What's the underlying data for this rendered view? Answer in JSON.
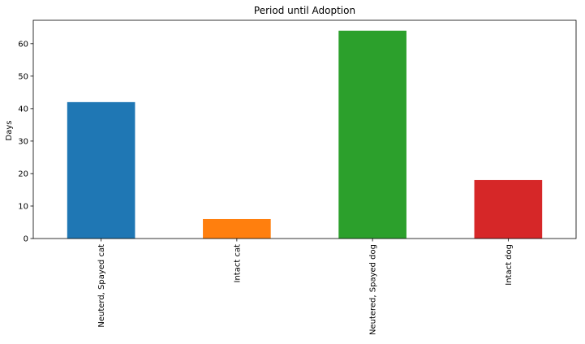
{
  "chart_data": {
    "type": "bar",
    "title": "Period until Adoption",
    "xlabel": "",
    "ylabel": "Days",
    "categories": [
      "Neuterd, Spayed cat",
      "Intact cat",
      "Neutered, Spayed dog",
      "Intact dog"
    ],
    "values": [
      42,
      6,
      64,
      18
    ],
    "colors": [
      "#1f77b4",
      "#ff7f0e",
      "#2ca02c",
      "#d62728"
    ],
    "ylim": [
      0,
      67.2
    ],
    "yticks": [
      0,
      10,
      20,
      30,
      40,
      50,
      60
    ],
    "grid": false,
    "legend": "none"
  }
}
